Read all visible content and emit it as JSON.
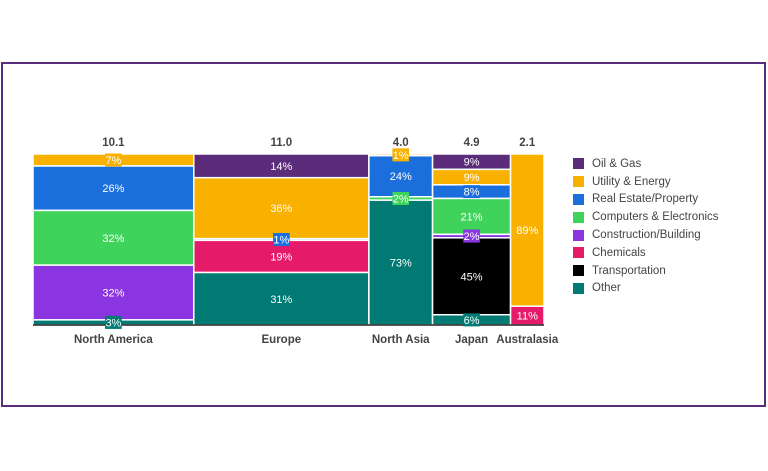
{
  "chart_data": {
    "type": "marimekko",
    "categories": [
      "North America",
      "Europe",
      "North Asia",
      "Japan",
      "Australasia"
    ],
    "totals": [
      "10.1",
      "11.0",
      "4.0",
      "4.9",
      "2.1"
    ],
    "total_values": [
      10.1,
      11.0,
      4.0,
      4.9,
      2.1
    ],
    "series": [
      {
        "name": "Oil & Gas",
        "color": "#5b2c7a",
        "values": [
          0,
          14,
          0,
          9,
          0
        ],
        "labels": [
          "",
          "14%",
          "",
          "9%",
          ""
        ]
      },
      {
        "name": "Utility & Energy",
        "color": "#f9b100",
        "values": [
          7,
          36,
          1,
          9,
          89
        ],
        "labels": [
          "7%",
          "36%",
          "1%",
          "9%",
          "89%"
        ]
      },
      {
        "name": "Real Estate/Property",
        "color": "#1b6fdc",
        "values": [
          26,
          1,
          24,
          8,
          0
        ],
        "labels": [
          "26%",
          "1%",
          "24%",
          "8%",
          ""
        ]
      },
      {
        "name": "Computers & Electronics",
        "color": "#3fd35b",
        "values": [
          32,
          0,
          2,
          21,
          0
        ],
        "labels": [
          "32%",
          "",
          "2%",
          "21%",
          ""
        ]
      },
      {
        "name": "Construction/Building",
        "color": "#8a35e0",
        "values": [
          32,
          0,
          0,
          2,
          0
        ],
        "labels": [
          "32%",
          "",
          "",
          "2%",
          ""
        ]
      },
      {
        "name": "Chemicals",
        "color": "#e51b6a",
        "values": [
          0,
          19,
          0,
          0,
          11
        ],
        "labels": [
          "",
          "19%",
          "",
          "",
          "11%"
        ]
      },
      {
        "name": "Transportation",
        "color": "#000000",
        "values": [
          0,
          0,
          0,
          45,
          0
        ],
        "labels": [
          "",
          "",
          "",
          "45%",
          ""
        ]
      },
      {
        "name": "Other",
        "color": "#007a72",
        "values": [
          3,
          31,
          73,
          6,
          0
        ],
        "labels": [
          "3%",
          "31%",
          "73%",
          "6%",
          ""
        ]
      }
    ]
  }
}
